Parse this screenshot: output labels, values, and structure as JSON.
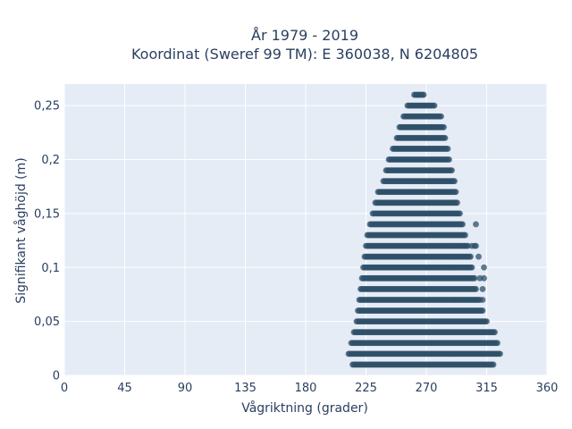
{
  "chart_data": {
    "type": "scatter",
    "title_line1": "År 1979 - 2019",
    "title_line2": "Koordinat (Sweref 99 TM): E 360038, N 6204805",
    "xlabel": "Vågriktning (grader)",
    "ylabel": "Signifikant våghöjd (m)",
    "xlim": [
      0,
      360
    ],
    "ylim": [
      0,
      0.27
    ],
    "x_ticks": [
      0,
      45,
      90,
      135,
      180,
      225,
      270,
      315,
      360
    ],
    "x_tick_labels": [
      "0",
      "45",
      "90",
      "135",
      "180",
      "225",
      "270",
      "315",
      "360"
    ],
    "y_ticks": [
      0,
      0.05,
      0.1,
      0.15,
      0.2,
      0.25
    ],
    "y_tick_labels": [
      "0",
      "0,05",
      "0,1",
      "0,15",
      "0,2",
      "0,25"
    ],
    "grid": true,
    "colors": {
      "marker": "#2f5068",
      "plot_bg": "#e5ecf6",
      "grid": "#ffffff",
      "text": "#2a3f5f"
    },
    "series": [
      {
        "row_ranges": [
          {
            "y": 0.01,
            "x_min": 215,
            "x_max": 320
          },
          {
            "y": 0.02,
            "x_min": 212,
            "x_max": 325
          },
          {
            "y": 0.03,
            "x_min": 214,
            "x_max": 323
          },
          {
            "y": 0.04,
            "x_min": 216,
            "x_max": 321
          },
          {
            "y": 0.05,
            "x_min": 218,
            "x_max": 315
          },
          {
            "y": 0.06,
            "x_min": 219,
            "x_max": 312
          },
          {
            "y": 0.07,
            "x_min": 220,
            "x_max": 310
          },
          {
            "y": 0.08,
            "x_min": 221,
            "x_max": 307
          },
          {
            "y": 0.09,
            "x_min": 222,
            "x_max": 306
          },
          {
            "y": 0.1,
            "x_min": 223,
            "x_max": 304
          },
          {
            "y": 0.11,
            "x_min": 224,
            "x_max": 303
          },
          {
            "y": 0.12,
            "x_min": 225,
            "x_max": 301
          },
          {
            "y": 0.13,
            "x_min": 226,
            "x_max": 299
          },
          {
            "y": 0.14,
            "x_min": 228,
            "x_max": 297
          },
          {
            "y": 0.15,
            "x_min": 230,
            "x_max": 295
          },
          {
            "y": 0.16,
            "x_min": 232,
            "x_max": 293
          },
          {
            "y": 0.17,
            "x_min": 234,
            "x_max": 292
          },
          {
            "y": 0.18,
            "x_min": 238,
            "x_max": 291
          },
          {
            "y": 0.19,
            "x_min": 240,
            "x_max": 289
          },
          {
            "y": 0.2,
            "x_min": 242,
            "x_max": 287
          },
          {
            "y": 0.21,
            "x_min": 245,
            "x_max": 286
          },
          {
            "y": 0.22,
            "x_min": 248,
            "x_max": 284
          },
          {
            "y": 0.23,
            "x_min": 250,
            "x_max": 283
          },
          {
            "y": 0.24,
            "x_min": 253,
            "x_max": 281
          },
          {
            "y": 0.25,
            "x_min": 256,
            "x_max": 276
          },
          {
            "y": 0.26,
            "x_min": 261,
            "x_max": 268
          }
        ],
        "outliers": [
          {
            "x": 312,
            "y": 0.07
          },
          {
            "x": 312,
            "y": 0.08
          },
          {
            "x": 310,
            "y": 0.09
          },
          {
            "x": 313,
            "y": 0.09
          },
          {
            "x": 313,
            "y": 0.1
          },
          {
            "x": 309,
            "y": 0.11
          },
          {
            "x": 307,
            "y": 0.12
          },
          {
            "x": 306,
            "y": 0.12
          },
          {
            "x": 307,
            "y": 0.14
          },
          {
            "x": 304,
            "y": 0.12
          }
        ]
      }
    ]
  }
}
